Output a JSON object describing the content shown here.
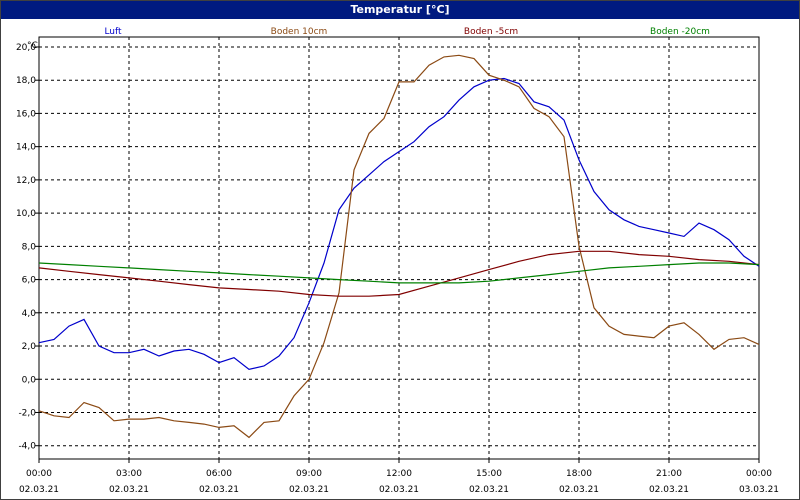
{
  "title": "Temperatur [°C]",
  "unit": "°C",
  "chart_data": {
    "type": "line",
    "title": "Temperatur [°C]",
    "ylabel": "°C",
    "xlim": [
      0,
      24
    ],
    "ylim": [
      -4.8,
      20.6
    ],
    "grid": true,
    "y_ticks": [
      "20,0",
      "18,0",
      "16,0",
      "14,0",
      "12,0",
      "10,0",
      "8,0",
      "6,0",
      "4,0",
      "2,0",
      "0,0",
      "-2,0",
      "-4,0"
    ],
    "x_ticks": [
      {
        "time": "00:00",
        "date": "02.03.21"
      },
      {
        "time": "03:00",
        "date": "02.03.21"
      },
      {
        "time": "06:00",
        "date": "02.03.21"
      },
      {
        "time": "09:00",
        "date": "02.03.21"
      },
      {
        "time": "12:00",
        "date": "02.03.21"
      },
      {
        "time": "15:00",
        "date": "02.03.21"
      },
      {
        "time": "18:00",
        "date": "02.03.21"
      },
      {
        "time": "21:00",
        "date": "02.03.21"
      },
      {
        "time": "00:00",
        "date": "03.03.21"
      }
    ],
    "series": [
      {
        "name": "Luft",
        "color": "#0000cc",
        "x": [
          0,
          0.5,
          1,
          1.5,
          2,
          2.5,
          3,
          3.5,
          4,
          4.5,
          5,
          5.5,
          6,
          6.5,
          7,
          7.5,
          8,
          8.5,
          9,
          9.5,
          10,
          10.5,
          11,
          11.5,
          12,
          12.5,
          13,
          13.5,
          14,
          14.5,
          15,
          15.5,
          16,
          16.5,
          17,
          17.5,
          18,
          18.5,
          19,
          19.5,
          20,
          20.5,
          21,
          21.5,
          22,
          22.5,
          23,
          23.5,
          24
        ],
        "values": [
          2.2,
          2.4,
          3.2,
          3.6,
          2.0,
          1.6,
          1.6,
          1.8,
          1.4,
          1.7,
          1.8,
          1.5,
          1.0,
          1.3,
          0.6,
          0.8,
          1.4,
          2.5,
          4.6,
          7.0,
          10.2,
          11.5,
          12.3,
          13.1,
          13.7,
          14.3,
          15.2,
          15.8,
          16.8,
          17.6,
          18.0,
          18.1,
          17.8,
          16.7,
          16.4,
          15.6,
          13.2,
          11.3,
          10.2,
          9.6,
          9.2,
          9.0,
          8.8,
          8.6,
          9.4,
          9.0,
          8.4,
          7.4,
          6.8
        ]
      },
      {
        "name": "Boden 10cm",
        "color": "#8b4a14",
        "x": [
          0,
          0.5,
          1,
          1.5,
          2,
          2.5,
          3,
          3.5,
          4,
          4.5,
          5,
          5.5,
          6,
          6.5,
          7,
          7.5,
          8,
          8.5,
          9,
          9.5,
          10,
          10.5,
          11,
          11.5,
          12,
          12.5,
          13,
          13.5,
          14,
          14.5,
          15,
          15.5,
          16,
          16.5,
          17,
          17.5,
          18,
          18.5,
          19,
          19.5,
          20,
          20.5,
          21,
          21.5,
          22,
          22.5,
          23,
          23.5,
          24
        ],
        "values": [
          -1.9,
          -2.2,
          -2.3,
          -1.4,
          -1.7,
          -2.5,
          -2.4,
          -2.4,
          -2.3,
          -2.5,
          -2.6,
          -2.7,
          -2.9,
          -2.8,
          -3.5,
          -2.6,
          -2.5,
          -1.0,
          0.0,
          2.2,
          5.2,
          12.6,
          14.8,
          15.7,
          17.9,
          17.9,
          18.9,
          19.4,
          19.5,
          19.3,
          18.3,
          18.0,
          17.6,
          16.3,
          15.8,
          14.6,
          8.0,
          4.3,
          3.2,
          2.7,
          2.6,
          2.5,
          3.2,
          3.4,
          2.7,
          1.8,
          2.4,
          2.5,
          2.1
        ]
      },
      {
        "name": "Boden -5cm",
        "color": "#800000",
        "x": [
          0,
          1,
          2,
          3,
          4,
          5,
          6,
          7,
          8,
          9,
          10,
          11,
          12,
          13,
          14,
          15,
          16,
          17,
          18,
          19,
          20,
          21,
          22,
          23,
          24
        ],
        "values": [
          6.7,
          6.5,
          6.3,
          6.1,
          5.9,
          5.7,
          5.5,
          5.4,
          5.3,
          5.1,
          5.0,
          5.0,
          5.1,
          5.6,
          6.1,
          6.6,
          7.1,
          7.5,
          7.7,
          7.7,
          7.5,
          7.4,
          7.2,
          7.1,
          6.9
        ]
      },
      {
        "name": "Boden -20cm",
        "color": "#008000",
        "x": [
          0,
          1,
          2,
          3,
          4,
          5,
          6,
          7,
          8,
          9,
          10,
          11,
          12,
          13,
          14,
          15,
          16,
          17,
          18,
          19,
          20,
          21,
          22,
          23,
          24
        ],
        "values": [
          7.0,
          6.9,
          6.8,
          6.7,
          6.6,
          6.5,
          6.4,
          6.3,
          6.2,
          6.1,
          6.0,
          5.9,
          5.8,
          5.8,
          5.8,
          5.9,
          6.1,
          6.3,
          6.5,
          6.7,
          6.8,
          6.9,
          7.0,
          7.0,
          6.9
        ]
      }
    ]
  }
}
